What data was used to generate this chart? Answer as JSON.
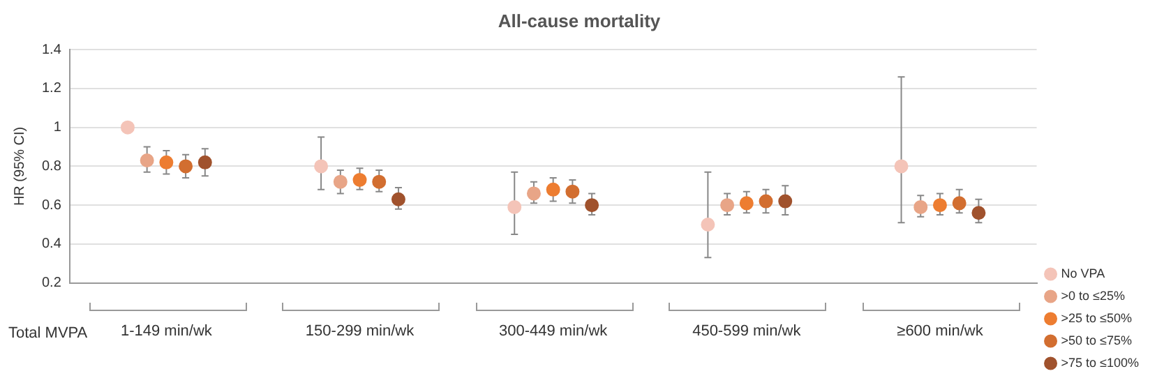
{
  "chart_data": {
    "type": "scatter",
    "title": "All-cause mortality",
    "ylabel": "HR (95% CI)",
    "xlabel": "Total MVPA",
    "categories": [
      "1-149 min/wk",
      "150-299 min/wk",
      "300-449 min/wk",
      "450-599 min/wk",
      "≥600 min/wk"
    ],
    "ylim": [
      0.2,
      1.4
    ],
    "yticks": [
      0.2,
      0.4,
      0.6,
      0.8,
      1,
      1.2,
      1.4
    ],
    "grid": "y",
    "legend": "right",
    "marker": "circle",
    "series": [
      {
        "name": "No VPA",
        "color": "#f4c4b8",
        "values": [
          1.0,
          0.8,
          0.59,
          0.5,
          0.8
        ],
        "errors": [
          null,
          [
            0.68,
            0.95
          ],
          [
            0.45,
            0.77
          ],
          [
            0.33,
            0.77
          ],
          [
            0.51,
            1.26
          ]
        ]
      },
      {
        "name": ">0 to ≤25%",
        "color": "#e8a587",
        "values": [
          0.83,
          0.72,
          0.66,
          0.6,
          0.59
        ],
        "errors": [
          [
            0.77,
            0.9
          ],
          [
            0.66,
            0.78
          ],
          [
            0.61,
            0.72
          ],
          [
            0.55,
            0.66
          ],
          [
            0.54,
            0.65
          ]
        ]
      },
      {
        "name": ">25 to ≤50%",
        "color": "#ed7d31",
        "values": [
          0.82,
          0.73,
          0.68,
          0.61,
          0.6
        ],
        "errors": [
          [
            0.76,
            0.88
          ],
          [
            0.68,
            0.79
          ],
          [
            0.62,
            0.74
          ],
          [
            0.56,
            0.67
          ],
          [
            0.55,
            0.66
          ]
        ]
      },
      {
        "name": ">50 to ≤75%",
        "color": "#d26e30",
        "values": [
          0.8,
          0.72,
          0.67,
          0.62,
          0.61
        ],
        "errors": [
          [
            0.74,
            0.86
          ],
          [
            0.67,
            0.78
          ],
          [
            0.61,
            0.73
          ],
          [
            0.56,
            0.68
          ],
          [
            0.56,
            0.68
          ]
        ]
      },
      {
        "name": ">75 to ≤100%",
        "color": "#a0522d",
        "values": [
          0.82,
          0.63,
          0.6,
          0.62,
          0.56
        ],
        "errors": [
          [
            0.75,
            0.89
          ],
          [
            0.58,
            0.69
          ],
          [
            0.55,
            0.66
          ],
          [
            0.55,
            0.7
          ],
          [
            0.51,
            0.63
          ]
        ]
      }
    ]
  }
}
